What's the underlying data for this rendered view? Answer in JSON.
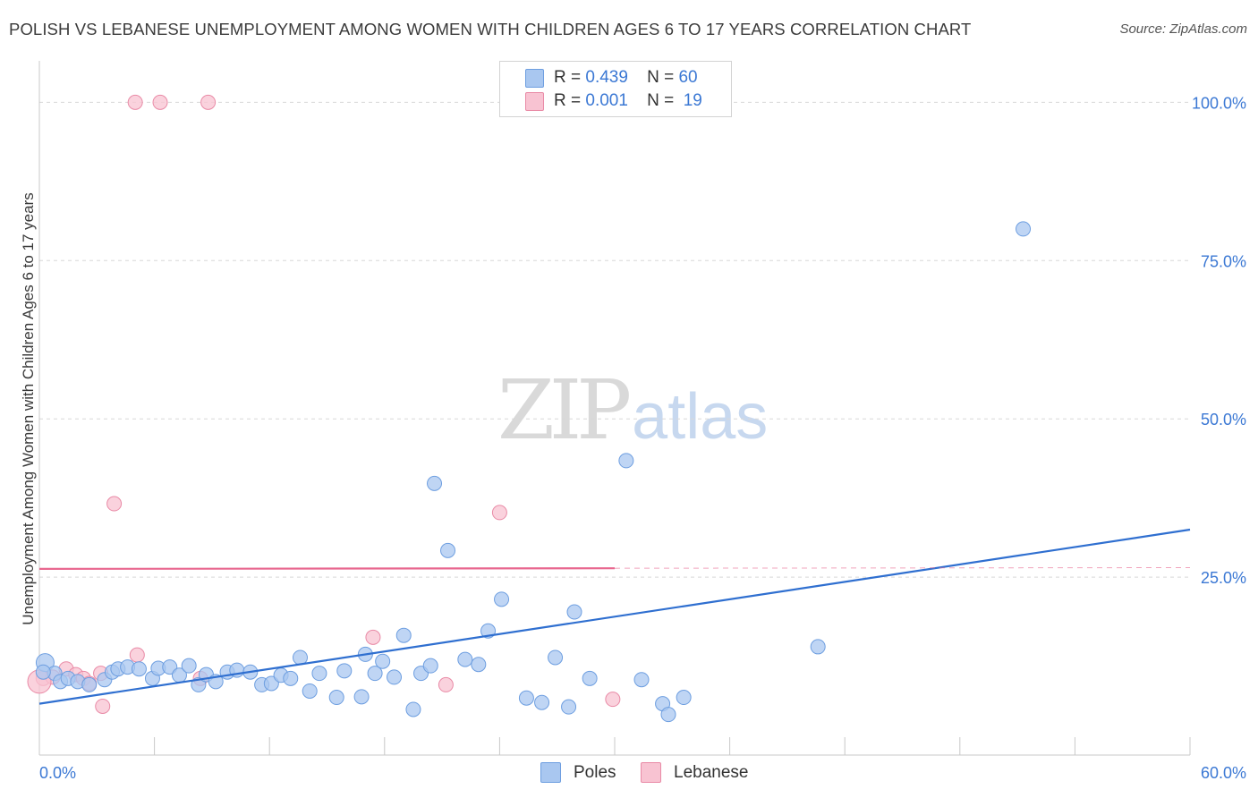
{
  "title": "POLISH VS LEBANESE UNEMPLOYMENT AMONG WOMEN WITH CHILDREN AGES 6 TO 17 YEARS CORRELATION CHART",
  "source": "Source: ZipAtlas.com",
  "watermark": {
    "zip": "ZIP",
    "atlas": "atlas"
  },
  "legend_top": [
    {
      "r_label": "R =",
      "r_value": "0.439",
      "n_label": "N =",
      "n_value": "60",
      "color": "#a9c7f0",
      "border": "#6d9ee0"
    },
    {
      "r_label": "R =",
      "r_value": "0.001",
      "n_label": "N =",
      "n_value": "19",
      "color": "#f8c3d2",
      "border": "#e98aa6"
    }
  ],
  "colors": {
    "poles_fill": "#a9c7f0",
    "poles_stroke": "#6d9ee0",
    "poles_line": "#2f6fd0",
    "lebanese_fill": "#f8c3d2",
    "lebanese_stroke": "#e98aa6",
    "lebanese_line": "#e8678f",
    "tick_label": "#3b78d4",
    "grid": "#d8d8d8"
  },
  "chart_data": {
    "type": "scatter",
    "title": "POLISH VS LEBANESE UNEMPLOYMENT AMONG WOMEN WITH CHILDREN AGES 6 TO 17 YEARS CORRELATION CHART",
    "xlabel": "",
    "ylabel": "Unemployment Among Women with Children Ages 6 to 17 years",
    "xlim": [
      0,
      60
    ],
    "ylim": [
      0,
      105
    ],
    "x_tick_labels": [
      "0.0%",
      "60.0%"
    ],
    "y_ticks": [
      25,
      50,
      75,
      100
    ],
    "y_tick_labels": [
      "25.0%",
      "50.0%",
      "75.0%",
      "100.0%"
    ],
    "grid": true,
    "legend_position": "bottom",
    "series": [
      {
        "name": "Poles",
        "points": [
          [
            0.3,
            11.5
          ],
          [
            0.8,
            9.8
          ],
          [
            1.1,
            8.5
          ],
          [
            1.5,
            9.0
          ],
          [
            2.0,
            8.5
          ],
          [
            2.6,
            8.0
          ],
          [
            3.4,
            8.8
          ],
          [
            3.8,
            10.0
          ],
          [
            4.1,
            10.5
          ],
          [
            4.6,
            10.8
          ],
          [
            5.2,
            10.5
          ],
          [
            5.9,
            9.0
          ],
          [
            6.2,
            10.6
          ],
          [
            6.8,
            10.8
          ],
          [
            7.3,
            9.5
          ],
          [
            7.8,
            11.0
          ],
          [
            8.3,
            8.0
          ],
          [
            8.7,
            9.6
          ],
          [
            9.2,
            8.5
          ],
          [
            9.8,
            10.0
          ],
          [
            10.3,
            10.3
          ],
          [
            11.0,
            10.0
          ],
          [
            11.6,
            8.0
          ],
          [
            12.1,
            8.2
          ],
          [
            12.6,
            9.5
          ],
          [
            13.1,
            9.0
          ],
          [
            13.6,
            12.3
          ],
          [
            14.1,
            7.0
          ],
          [
            14.6,
            9.8
          ],
          [
            15.5,
            6.0
          ],
          [
            15.9,
            10.2
          ],
          [
            16.8,
            6.1
          ],
          [
            17.0,
            12.8
          ],
          [
            17.5,
            9.8
          ],
          [
            17.9,
            11.7
          ],
          [
            18.5,
            9.2
          ],
          [
            19.0,
            15.8
          ],
          [
            19.5,
            4.1
          ],
          [
            19.9,
            9.8
          ],
          [
            20.4,
            11.0
          ],
          [
            20.6,
            39.8
          ],
          [
            21.3,
            29.2
          ],
          [
            22.2,
            12.0
          ],
          [
            22.9,
            11.2
          ],
          [
            23.4,
            16.5
          ],
          [
            24.1,
            21.5
          ],
          [
            25.4,
            5.9
          ],
          [
            26.2,
            5.2
          ],
          [
            26.9,
            12.3
          ],
          [
            27.6,
            4.5
          ],
          [
            27.9,
            19.5
          ],
          [
            28.7,
            9.0
          ],
          [
            30.6,
            43.4
          ],
          [
            31.4,
            8.8
          ],
          [
            32.5,
            5.0
          ],
          [
            32.8,
            3.3
          ],
          [
            33.6,
            6.0
          ],
          [
            40.6,
            14.0
          ],
          [
            51.3,
            80.0
          ],
          [
            0.2,
            10.0
          ]
        ],
        "trend": {
          "x": [
            0,
            60
          ],
          "y": [
            5.0,
            32.5
          ]
        }
      },
      {
        "name": "Lebanese",
        "points": [
          [
            0.2,
            9.0
          ],
          [
            0.7,
            9.2
          ],
          [
            1.4,
            10.5
          ],
          [
            1.9,
            9.6
          ],
          [
            2.3,
            9.0
          ],
          [
            2.6,
            8.2
          ],
          [
            3.2,
            9.8
          ],
          [
            3.3,
            4.6
          ],
          [
            3.9,
            36.6
          ],
          [
            5.0,
            100.0
          ],
          [
            5.1,
            12.7
          ],
          [
            6.3,
            100.0
          ],
          [
            8.4,
            9.0
          ],
          [
            8.8,
            100.0
          ],
          [
            17.4,
            15.5
          ],
          [
            21.2,
            8.0
          ],
          [
            24.0,
            35.2
          ],
          [
            29.9,
            5.7
          ],
          [
            0.0,
            8.5
          ]
        ],
        "trend": {
          "x": [
            0,
            60
          ],
          "y": [
            26.3,
            26.5
          ],
          "solid_until_x": 30
        }
      }
    ]
  },
  "bottom_legend": [
    {
      "label": "Poles",
      "color": "#a9c7f0",
      "border": "#6d9ee0"
    },
    {
      "label": "Lebanese",
      "color": "#f8c3d2",
      "border": "#e98aa6"
    }
  ]
}
